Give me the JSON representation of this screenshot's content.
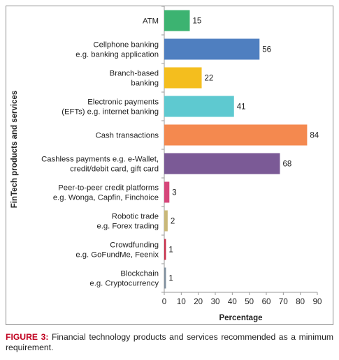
{
  "chart_data": {
    "type": "bar",
    "orientation": "horizontal",
    "categories": [
      [
        "ATM"
      ],
      [
        "Cellphone banking",
        "e.g. banking application"
      ],
      [
        "Branch-based",
        "banking"
      ],
      [
        "Electronic payments",
        "(EFTs) e.g. internet banking"
      ],
      [
        "Cash transactions"
      ],
      [
        "Cashless payments e.g. e-Wallet,",
        "credit/debit card, gift card"
      ],
      [
        "Peer-to-peer credit platforms",
        "e.g. Wonga, Capfin, Finchoice"
      ],
      [
        "Robotic trade",
        "e.g. Forex trading"
      ],
      [
        "Crowdfunding",
        "e.g. GoFundMe, Feenix"
      ],
      [
        "Blockchain",
        "e.g. Cryptocurrency"
      ]
    ],
    "values": [
      15,
      56,
      22,
      41,
      84,
      68,
      3,
      2,
      1,
      1
    ],
    "colors": [
      "#3cb371",
      "#4f7fc0",
      "#f4be1e",
      "#5ec9d0",
      "#f4894f",
      "#7b5a96",
      "#d6467a",
      "#c9b879",
      "#c7304a",
      "#7f8f9e"
    ],
    "xlabel": "Percentage",
    "ylabel": "FinTech products and services",
    "xlim": [
      0,
      90
    ],
    "xticks": [
      0,
      10,
      20,
      30,
      40,
      50,
      60,
      70,
      80,
      90
    ],
    "grid": false,
    "legend": "none"
  },
  "caption": {
    "label": "FIGURE 3:",
    "text": " Financial technology products and services recommended as a minimum requirement."
  }
}
